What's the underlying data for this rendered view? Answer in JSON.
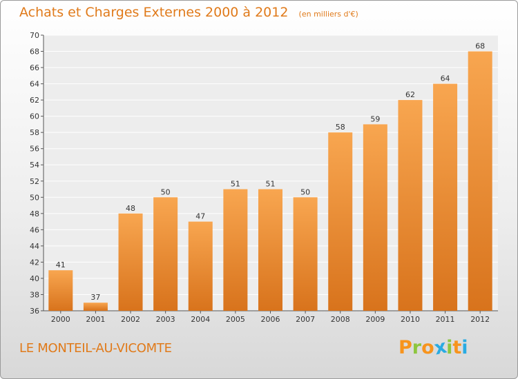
{
  "title": "Achats et Charges Externes 2000 à 2012",
  "unit": "(en milliers d'€)",
  "commune": "LE MONTEIL-AU-VICOMTE",
  "logo": {
    "text": "Proxiti",
    "letters": [
      {
        "ch": "P",
        "color": "#f7941d"
      },
      {
        "ch": "r",
        "color": "#8dc63f"
      },
      {
        "ch": "o",
        "color": "#f7941d"
      },
      {
        "ch": "x",
        "color": "#29abe2"
      },
      {
        "ch": "i",
        "color": "#8dc63f"
      },
      {
        "ch": "t",
        "color": "#f7941d"
      },
      {
        "ch": "i",
        "color": "#29abe2"
      }
    ]
  },
  "colors": {
    "bar_top": "#f8a650",
    "bar_bottom": "#d8731c",
    "accent": "#e07a1a"
  },
  "chart_data": {
    "type": "bar",
    "title": "Achats et Charges Externes 2000 à 2012",
    "subtitle": "(en milliers d'€)",
    "categories": [
      "2000",
      "2001",
      "2002",
      "2003",
      "2004",
      "2005",
      "2006",
      "2007",
      "2008",
      "2009",
      "2010",
      "2011",
      "2012"
    ],
    "values": [
      41,
      37,
      48,
      50,
      47,
      51,
      51,
      50,
      58,
      59,
      62,
      64,
      68
    ],
    "ylim": [
      36,
      70
    ],
    "yticks": [
      36,
      38,
      40,
      42,
      44,
      46,
      48,
      50,
      52,
      54,
      56,
      58,
      60,
      62,
      64,
      66,
      68,
      70
    ],
    "grid": true,
    "legend": "none"
  }
}
